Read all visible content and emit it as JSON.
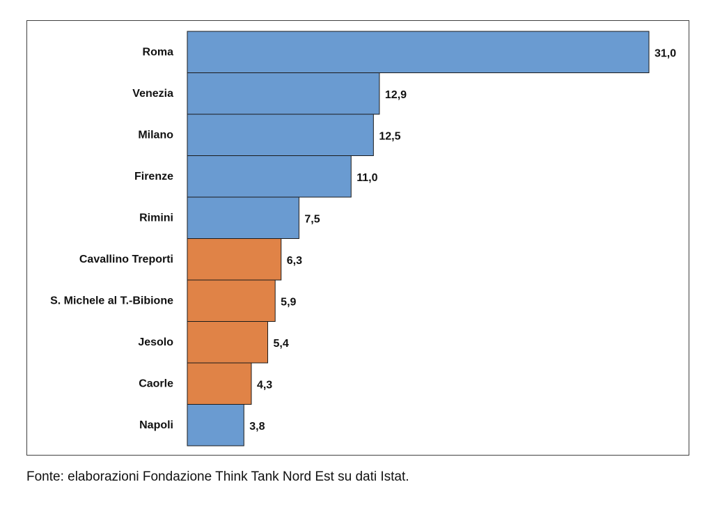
{
  "chart_data": {
    "type": "bar",
    "orientation": "horizontal",
    "categories": [
      "Roma",
      "Venezia",
      "Milano",
      "Firenze",
      "Rimini",
      "Cavallino Treporti",
      "S. Michele al T.-Bibione",
      "Jesolo",
      "Caorle",
      "Napoli"
    ],
    "values": [
      31.0,
      12.9,
      12.5,
      11.0,
      7.5,
      6.3,
      5.9,
      5.4,
      4.3,
      3.8
    ],
    "value_labels": [
      "31,0",
      "12,9",
      "12,5",
      "11,0",
      "7,5",
      "6,3",
      "5,9",
      "5,4",
      "4,3",
      "3,8"
    ],
    "bar_groups": [
      "blue",
      "blue",
      "blue",
      "blue",
      "blue",
      "orange",
      "orange",
      "orange",
      "orange",
      "blue"
    ],
    "colors": {
      "blue": "#6a9bd1",
      "orange": "#e08347",
      "bar_outline": "#1a1a1a"
    },
    "xlim": [
      0,
      31.0
    ],
    "grid": false,
    "legend": "none"
  },
  "source_note": "Fonte: elaborazioni Fondazione Think Tank Nord Est su dati Istat."
}
